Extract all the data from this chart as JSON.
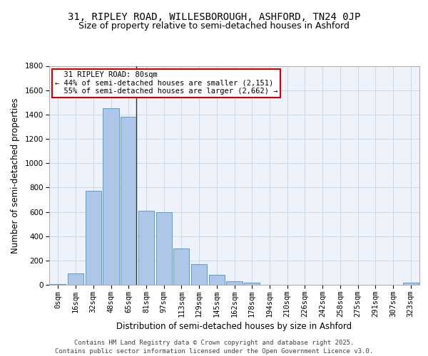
{
  "title1": "31, RIPLEY ROAD, WILLESBOROUGH, ASHFORD, TN24 0JP",
  "title2": "Size of property relative to semi-detached houses in Ashford",
  "xlabel": "Distribution of semi-detached houses by size in Ashford",
  "ylabel": "Number of semi-detached properties",
  "bin_labels": [
    "0sqm",
    "16sqm",
    "32sqm",
    "48sqm",
    "65sqm",
    "81sqm",
    "97sqm",
    "113sqm",
    "129sqm",
    "145sqm",
    "162sqm",
    "178sqm",
    "194sqm",
    "210sqm",
    "226sqm",
    "242sqm",
    "258sqm",
    "275sqm",
    "291sqm",
    "307sqm",
    "323sqm"
  ],
  "bar_values": [
    5,
    95,
    775,
    1450,
    1380,
    610,
    600,
    300,
    170,
    80,
    28,
    20,
    0,
    0,
    0,
    0,
    0,
    0,
    0,
    0,
    20
  ],
  "bar_color": "#aec6e8",
  "bar_edge_color": "#5b9bd5",
  "background_color": "#eef2fa",
  "grid_color": "#d0d8e8",
  "property_label": "31 RIPLEY ROAD: 80sqm",
  "pct_smaller": 44,
  "pct_smaller_count": 2151,
  "pct_larger": 55,
  "pct_larger_count": 2662,
  "annotation_box_color": "#cc0000",
  "ylim": [
    0,
    1800
  ],
  "yticks": [
    0,
    200,
    400,
    600,
    800,
    1000,
    1200,
    1400,
    1600,
    1800
  ],
  "vline_x": 4.43,
  "footer": "Contains HM Land Registry data © Crown copyright and database right 2025.\nContains public sector information licensed under the Open Government Licence v3.0.",
  "title1_fontsize": 10,
  "title2_fontsize": 9,
  "xlabel_fontsize": 8.5,
  "ylabel_fontsize": 8.5,
  "tick_fontsize": 7.5,
  "annotation_fontsize": 7.5,
  "footer_fontsize": 6.5
}
